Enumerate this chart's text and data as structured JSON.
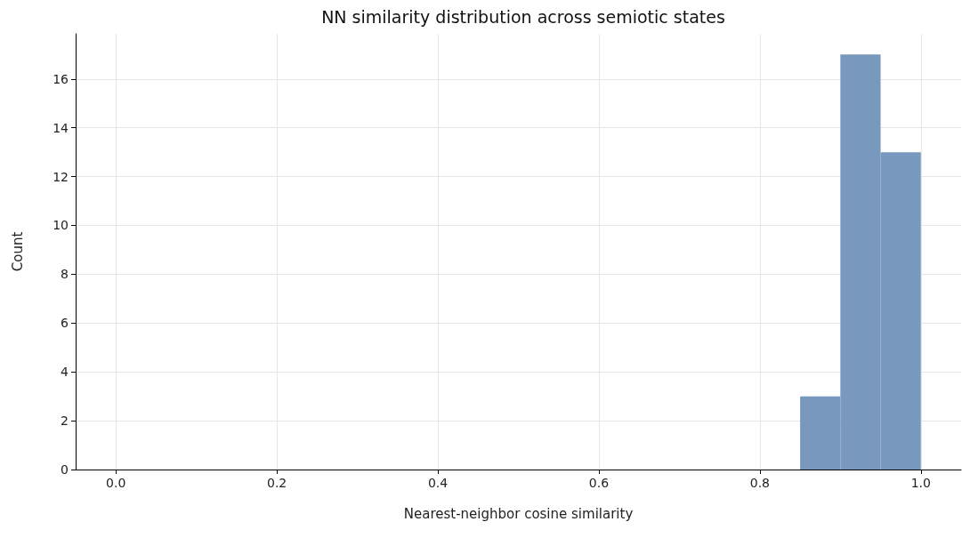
{
  "chart_data": {
    "type": "histogram",
    "title": "NN similarity distribution across semiotic states",
    "xlabel": "Nearest-neighbor cosine similarity",
    "ylabel": "Count",
    "bins": [
      0.85,
      0.9,
      0.95,
      1.0
    ],
    "values": [
      3,
      17,
      13
    ],
    "color": "#7899bd",
    "xlim": [
      -0.05,
      1.05
    ],
    "xticks": [
      {
        "value": 0,
        "label": "0.0"
      },
      {
        "value": 0.2,
        "label": "0.2"
      },
      {
        "value": 0.4,
        "label": "0.4"
      },
      {
        "value": 0.6,
        "label": "0.6"
      },
      {
        "value": 0.8,
        "label": "0.8"
      },
      {
        "value": 1,
        "label": "1.0"
      }
    ],
    "ylim": [
      0,
      17.85
    ],
    "yticks": [
      0,
      2,
      4,
      6,
      8,
      10,
      12,
      14,
      16
    ],
    "grid": true
  }
}
